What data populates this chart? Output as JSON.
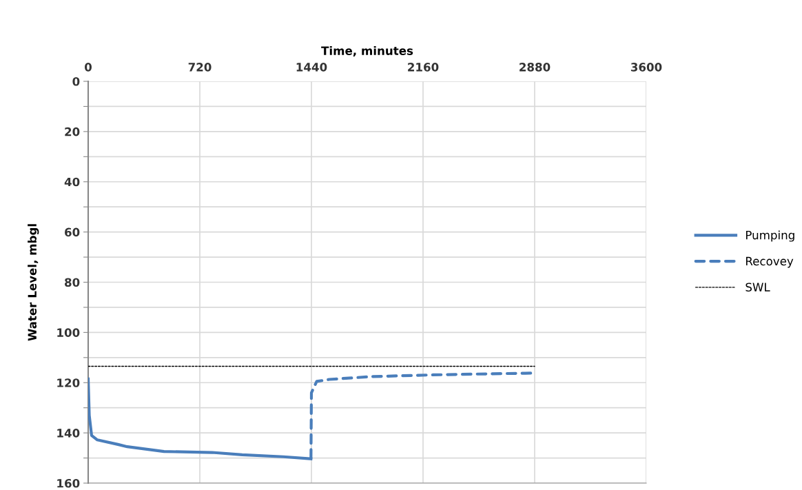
{
  "chart_data": {
    "type": "line",
    "xlabel": "Time, minutes",
    "ylabel": "Water Level, mbgl",
    "xlim": [
      0,
      3600
    ],
    "xticks": [
      0,
      720,
      1440,
      2160,
      2880,
      3600
    ],
    "ylim": [
      160,
      0
    ],
    "yticks": [
      0,
      {
        "value": 10,
        "label": null
      },
      20,
      {
        "value": 30,
        "label": null
      },
      40,
      {
        "value": 50,
        "label": null
      },
      60,
      {
        "value": 70,
        "label": null
      },
      80,
      {
        "value": 90,
        "label": null
      },
      100,
      {
        "value": 110,
        "label": null
      },
      120,
      {
        "value": 130,
        "label": null
      },
      140,
      {
        "value": 150,
        "label": null
      },
      160
    ],
    "grid": true,
    "legend": "right",
    "marker": "none",
    "series": [
      {
        "name": "Pumping",
        "color": "#4a7ebb",
        "line_style": "solid",
        "x": [
          0,
          7,
          22,
          59,
          192,
          252,
          489,
          800,
          993,
          1259,
          1437
        ],
        "values": [
          118.5,
          133,
          141,
          142.8,
          144.6,
          145.5,
          147.4,
          147.8,
          148.7,
          149.5,
          150.3
        ]
      },
      {
        "name": "Recovey",
        "color": "#4a7ebb",
        "line_style": "dashed",
        "x": [
          1437,
          1440,
          1474,
          1556,
          1822,
          2222,
          2667,
          2867
        ],
        "values": [
          150.1,
          124,
          119.5,
          118.7,
          117.6,
          116.9,
          116.4,
          116.2
        ]
      },
      {
        "name": "SWL",
        "color": "#000000",
        "line_style": "dotted",
        "x": [
          0,
          2880
        ],
        "values": [
          113.5,
          113.5
        ]
      }
    ]
  }
}
